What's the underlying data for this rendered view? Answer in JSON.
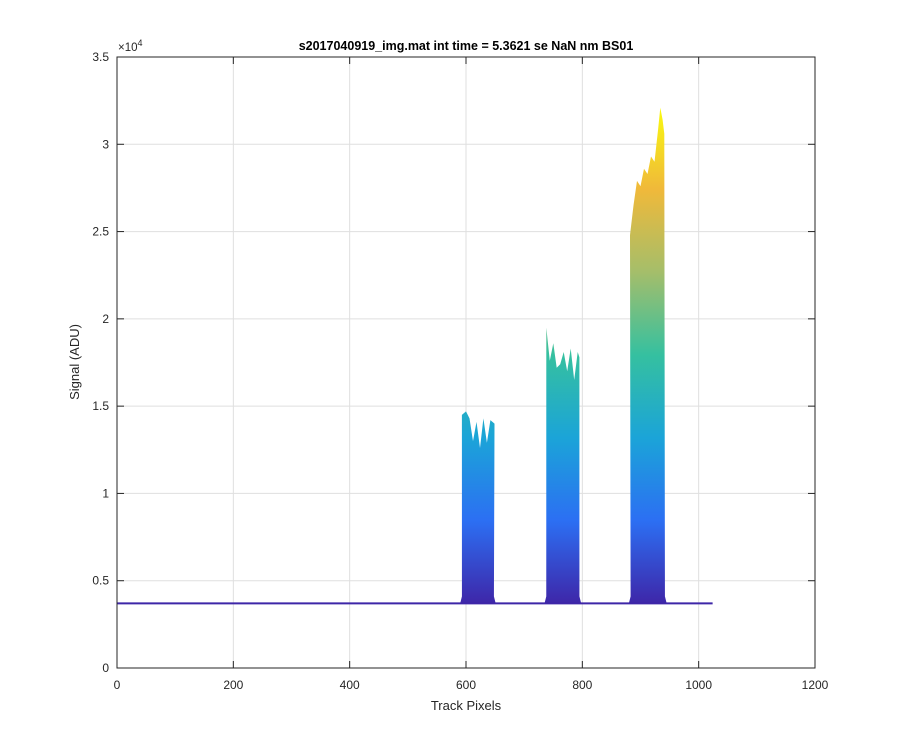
{
  "chart_data": {
    "type": "area",
    "title": "s2017040919_img.mat int time = 5.3621 se  NaN nm BS01",
    "xlabel": "Track Pixels",
    "ylabel": "Signal (ADU)",
    "xlim": [
      0,
      1200
    ],
    "ylim": [
      0,
      35000
    ],
    "xticks": [
      0,
      200,
      400,
      600,
      800,
      1000,
      1200
    ],
    "xtick_labels": [
      "0",
      "200",
      "400",
      "600",
      "800",
      "1000",
      "1200"
    ],
    "yticks": [
      0,
      5000,
      10000,
      15000,
      20000,
      25000,
      30000,
      35000
    ],
    "ytick_labels": [
      "0",
      "0.5",
      "1",
      "1.5",
      "2",
      "2.5",
      "3",
      "3.5"
    ],
    "y_exponent_label": "×10",
    "y_exponent_power": "4",
    "grid": true,
    "colormap": [
      "#3e26a8",
      "#2c6ff3",
      "#1ba4d8",
      "#35c0a0",
      "#a5be6a",
      "#f0b93a",
      "#f9fb0e"
    ],
    "baseline": 3700,
    "x_end": 1024,
    "peaks": [
      {
        "x_start": 590,
        "x_end": 651,
        "max": 14900,
        "profile": [
          [
            593,
            14500
          ],
          [
            600,
            14700
          ],
          [
            606,
            14300
          ],
          [
            612,
            13000
          ],
          [
            618,
            14100
          ],
          [
            624,
            12600
          ],
          [
            630,
            14300
          ],
          [
            636,
            12900
          ],
          [
            642,
            14200
          ],
          [
            649,
            14000
          ]
        ]
      },
      {
        "x_start": 735,
        "x_end": 798,
        "max": 19700,
        "profile": [
          [
            738,
            19500
          ],
          [
            744,
            17600
          ],
          [
            750,
            18600
          ],
          [
            756,
            17200
          ],
          [
            762,
            17400
          ],
          [
            768,
            18100
          ],
          [
            774,
            17000
          ],
          [
            780,
            18300
          ],
          [
            786,
            16500
          ],
          [
            792,
            18100
          ],
          [
            795,
            17800
          ]
        ]
      },
      {
        "x_start": 880,
        "x_end": 945,
        "max": 32100,
        "profile": [
          [
            882,
            24800
          ],
          [
            888,
            26500
          ],
          [
            894,
            27900
          ],
          [
            900,
            27600
          ],
          [
            906,
            28600
          ],
          [
            912,
            28300
          ],
          [
            918,
            29300
          ],
          [
            924,
            29000
          ],
          [
            930,
            30800
          ],
          [
            934,
            32100
          ],
          [
            938,
            31400
          ],
          [
            941,
            30600
          ]
        ]
      }
    ]
  }
}
